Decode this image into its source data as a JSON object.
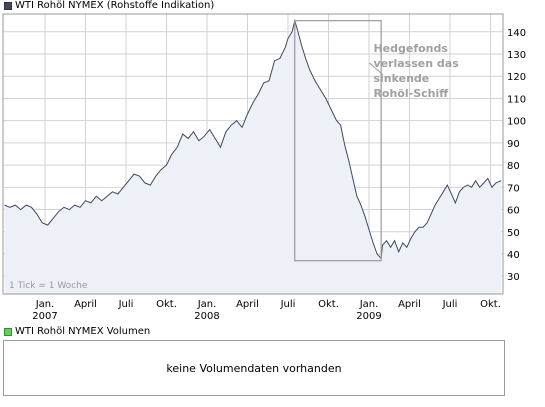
{
  "legend": {
    "price_label": "WTI Rohöl NYMEX (Rohstoffe Indikation)",
    "price_color": "#3c4a5c",
    "volume_label": "WTI Rohöl NYMEX Volumen",
    "volume_color": "#5fcf5f"
  },
  "volume_panel": {
    "message": "keine Volumendaten vorhanden"
  },
  "chart_data": {
    "type": "area",
    "ylim": [
      22,
      148
    ],
    "y_ticks": [
      30,
      40,
      50,
      60,
      70,
      80,
      90,
      100,
      110,
      120,
      130,
      140
    ],
    "x_ticks": [
      {
        "t": 0,
        "label": "Jan.",
        "sub": "2007"
      },
      {
        "t": 3,
        "label": "April",
        "sub": ""
      },
      {
        "t": 6,
        "label": "Juli",
        "sub": ""
      },
      {
        "t": 9,
        "label": "Okt.",
        "sub": ""
      },
      {
        "t": 12,
        "label": "Jan.",
        "sub": "2008"
      },
      {
        "t": 15,
        "label": "April",
        "sub": ""
      },
      {
        "t": 18,
        "label": "Juli",
        "sub": ""
      },
      {
        "t": 21,
        "label": "Okt.",
        "sub": ""
      },
      {
        "t": 24,
        "label": "Jan.",
        "sub": "2009"
      },
      {
        "t": 27,
        "label": "April",
        "sub": ""
      },
      {
        "t": 30,
        "label": "Juli",
        "sub": ""
      },
      {
        "t": 33,
        "label": "Okt.",
        "sub": ""
      }
    ],
    "series": [
      {
        "points": [
          [
            -3.0,
            62
          ],
          [
            -2.6,
            61
          ],
          [
            -2.2,
            62
          ],
          [
            -1.8,
            60
          ],
          [
            -1.4,
            62
          ],
          [
            -1.0,
            61
          ],
          [
            -0.6,
            58
          ],
          [
            -0.2,
            54
          ],
          [
            0.2,
            53
          ],
          [
            0.6,
            56
          ],
          [
            1.0,
            59
          ],
          [
            1.4,
            61
          ],
          [
            1.8,
            60
          ],
          [
            2.2,
            62
          ],
          [
            2.6,
            61
          ],
          [
            3.0,
            64
          ],
          [
            3.4,
            63
          ],
          [
            3.8,
            66
          ],
          [
            4.2,
            64
          ],
          [
            4.6,
            66
          ],
          [
            5.0,
            68
          ],
          [
            5.4,
            67
          ],
          [
            5.8,
            70
          ],
          [
            6.2,
            73
          ],
          [
            6.6,
            76
          ],
          [
            7.0,
            75
          ],
          [
            7.4,
            72
          ],
          [
            7.8,
            71
          ],
          [
            8.2,
            75
          ],
          [
            8.6,
            78
          ],
          [
            9.0,
            80
          ],
          [
            9.4,
            85
          ],
          [
            9.8,
            88
          ],
          [
            10.2,
            94
          ],
          [
            10.6,
            92
          ],
          [
            11.0,
            95
          ],
          [
            11.4,
            91
          ],
          [
            11.8,
            93
          ],
          [
            12.2,
            96
          ],
          [
            12.6,
            92
          ],
          [
            13.0,
            88
          ],
          [
            13.4,
            95
          ],
          [
            13.8,
            98
          ],
          [
            14.2,
            100
          ],
          [
            14.6,
            97
          ],
          [
            15.0,
            103
          ],
          [
            15.4,
            108
          ],
          [
            15.8,
            112
          ],
          [
            16.2,
            117
          ],
          [
            16.6,
            118
          ],
          [
            17.0,
            127
          ],
          [
            17.4,
            128
          ],
          [
            17.8,
            133
          ],
          [
            18.0,
            137
          ],
          [
            18.3,
            140
          ],
          [
            18.5,
            145
          ],
          [
            18.7,
            141
          ],
          [
            19.0,
            134
          ],
          [
            19.3,
            128
          ],
          [
            19.6,
            123
          ],
          [
            20.0,
            118
          ],
          [
            20.4,
            114
          ],
          [
            20.8,
            110
          ],
          [
            21.2,
            105
          ],
          [
            21.6,
            100
          ],
          [
            21.9,
            98
          ],
          [
            22.2,
            89
          ],
          [
            22.5,
            82
          ],
          [
            22.8,
            74
          ],
          [
            23.1,
            66
          ],
          [
            23.4,
            62
          ],
          [
            23.7,
            57
          ],
          [
            24.0,
            51
          ],
          [
            24.3,
            45
          ],
          [
            24.6,
            40
          ],
          [
            24.9,
            38
          ],
          [
            25.0,
            44
          ],
          [
            25.3,
            46
          ],
          [
            25.6,
            43
          ],
          [
            25.9,
            46
          ],
          [
            26.2,
            41
          ],
          [
            26.5,
            45
          ],
          [
            26.8,
            43
          ],
          [
            27.1,
            47
          ],
          [
            27.4,
            50
          ],
          [
            27.7,
            52
          ],
          [
            28.0,
            52
          ],
          [
            28.3,
            54
          ],
          [
            28.6,
            58
          ],
          [
            28.9,
            62
          ],
          [
            29.2,
            65
          ],
          [
            29.5,
            68
          ],
          [
            29.8,
            71
          ],
          [
            30.1,
            67
          ],
          [
            30.4,
            63
          ],
          [
            30.7,
            68
          ],
          [
            31.0,
            70
          ],
          [
            31.3,
            71
          ],
          [
            31.6,
            70
          ],
          [
            31.9,
            73
          ],
          [
            32.2,
            70
          ],
          [
            32.5,
            72
          ],
          [
            32.8,
            74
          ],
          [
            33.1,
            70
          ],
          [
            33.4,
            72
          ],
          [
            33.8,
            73
          ]
        ]
      }
    ],
    "annotation": {
      "lines": [
        "Hedgefonds",
        "verlassen das",
        "sinkende",
        "Rohöl-Schiff"
      ]
    },
    "note": "1 Tick = 1 Woche",
    "box": {
      "t_range": [
        18.5,
        24.9
      ],
      "y_range": [
        37,
        145
      ]
    },
    "colors": {
      "line": "#3c4a5c",
      "fill": "#eef0f8",
      "grid": "#d2d2d2",
      "frame": "#9a9a9a",
      "box": "#9a9a9a",
      "annotation": "#a0a0a0"
    }
  }
}
